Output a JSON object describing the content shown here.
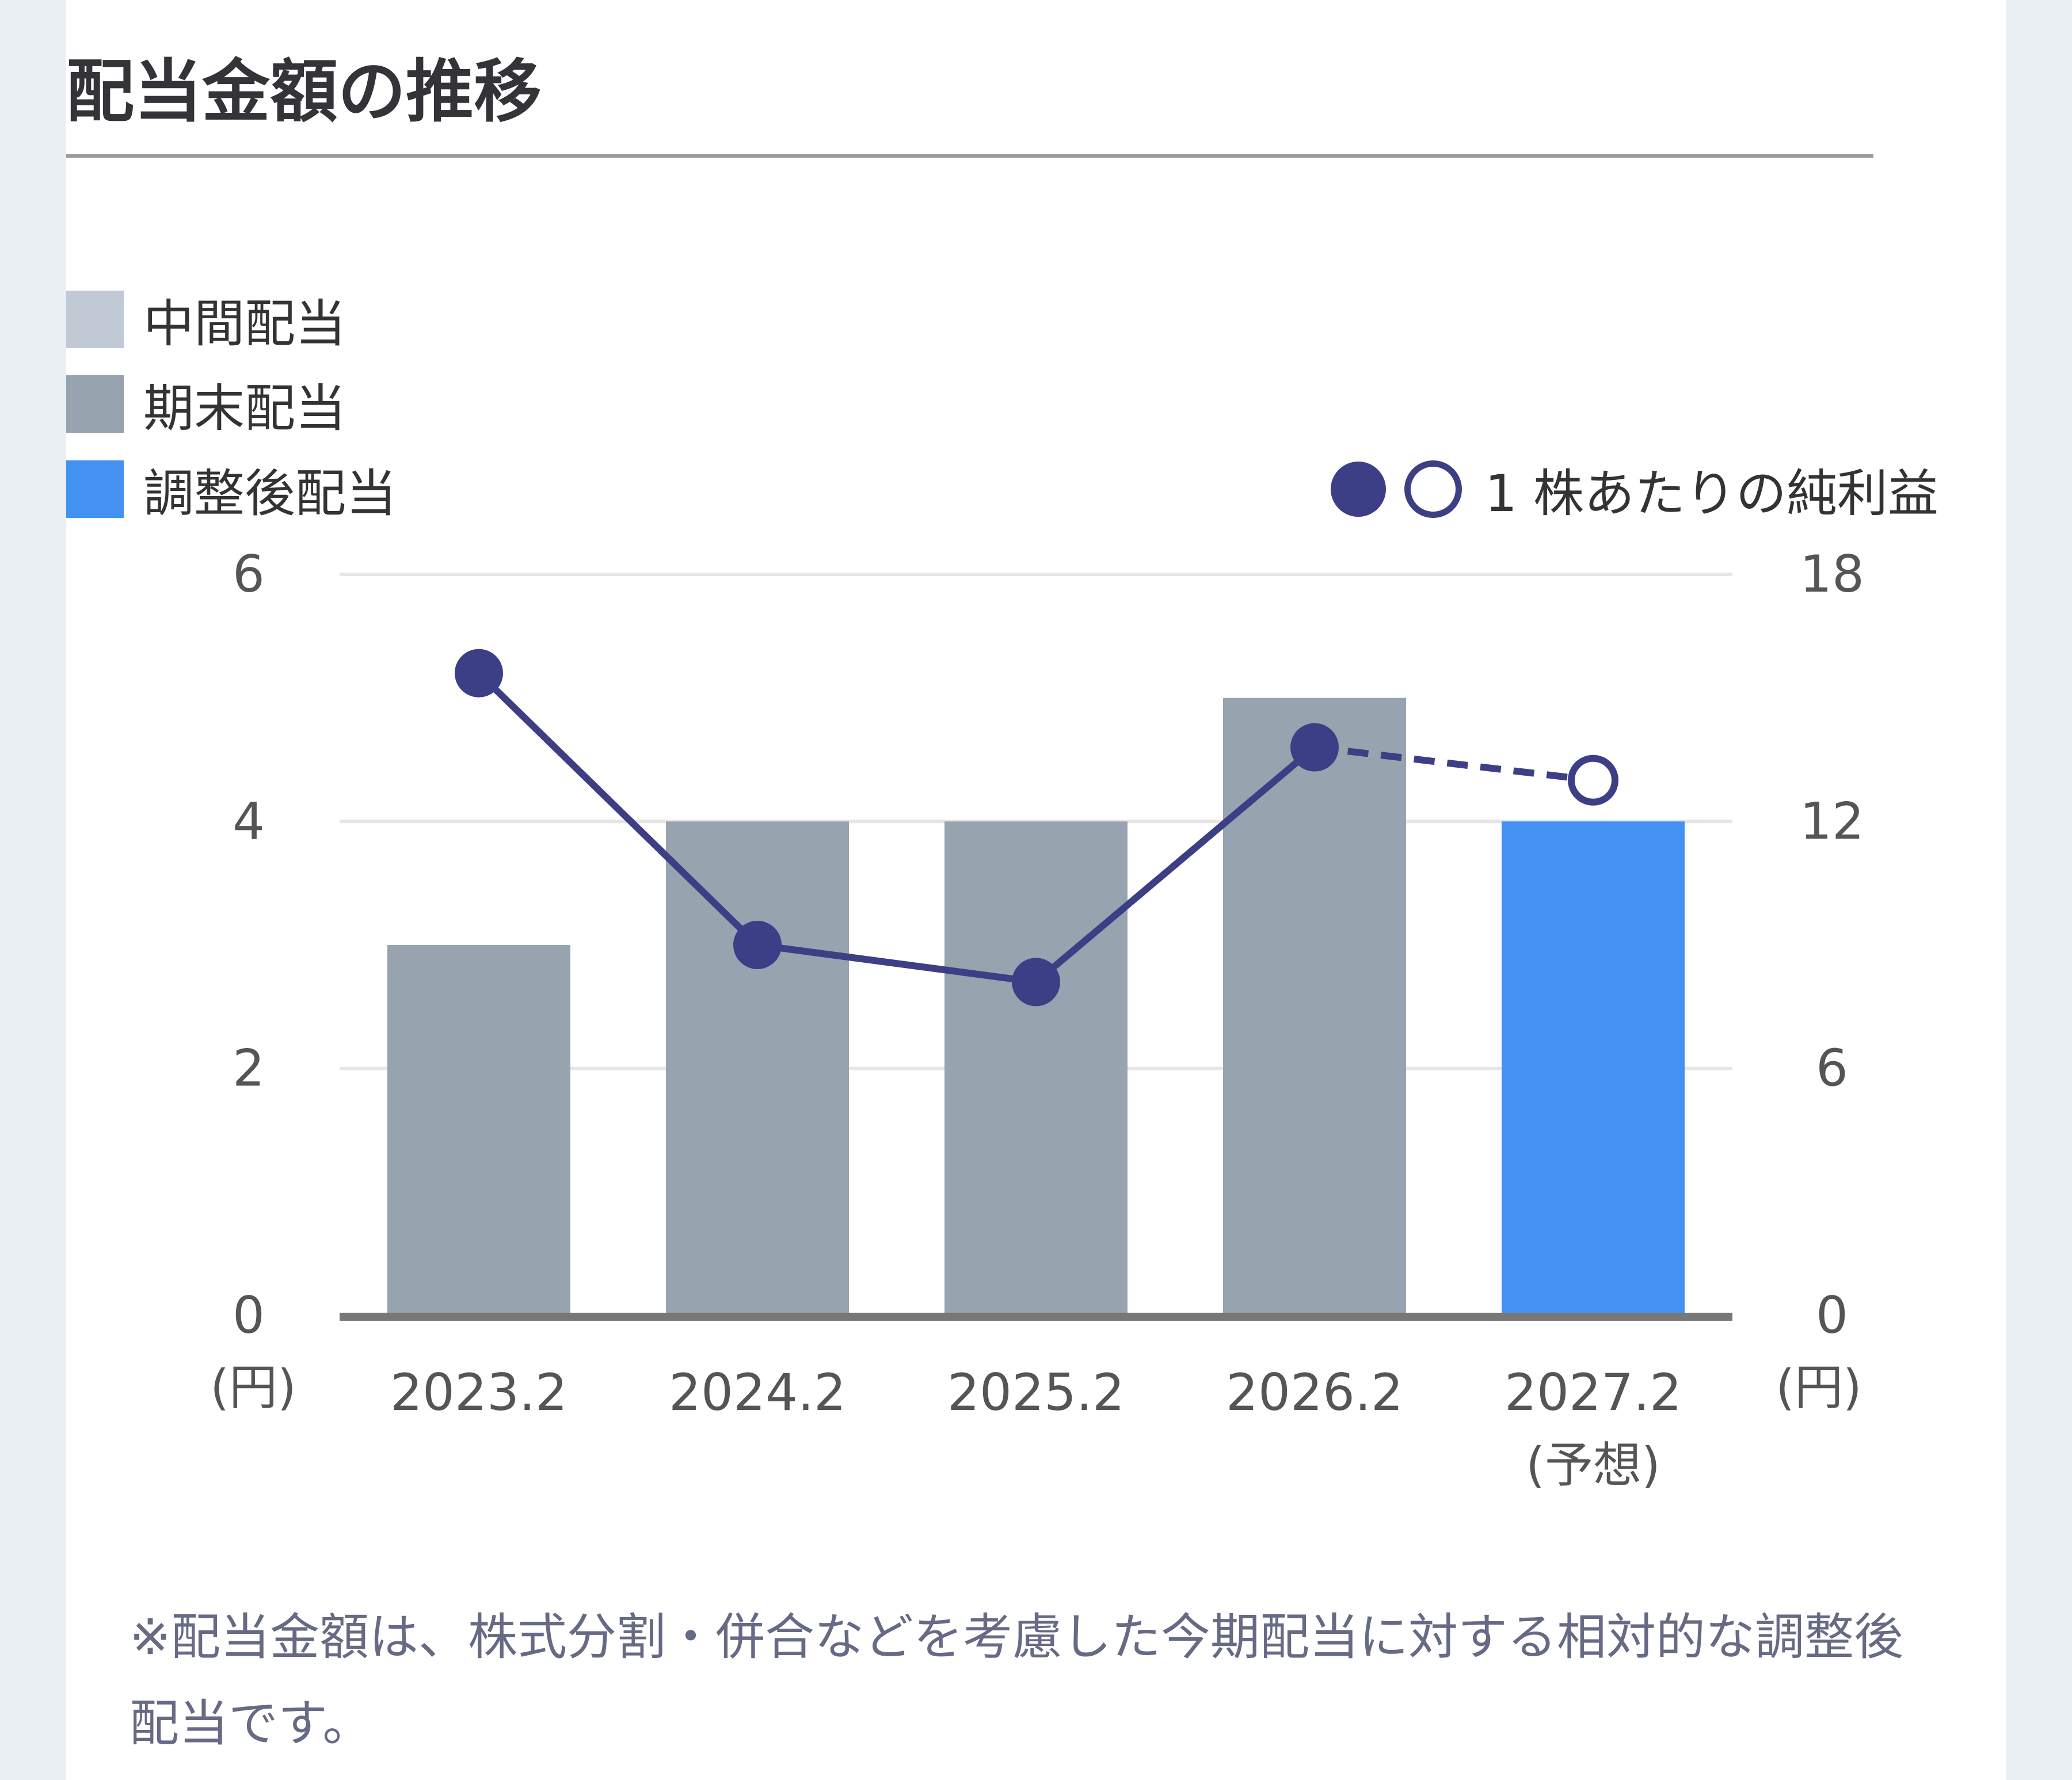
{
  "title": "配当金額の推移",
  "legend": {
    "interim": {
      "label": "中間配当",
      "color": "#c1cad4"
    },
    "year_end": {
      "label": "期末配当",
      "color": "#98a3b0"
    },
    "adjusted": {
      "label": "調整後配当",
      "color": "#4392f1"
    },
    "eps": {
      "label": "1 株あたりの純利益",
      "color": "#3c3f85"
    }
  },
  "chart_data": {
    "type": "bar",
    "categories": [
      "2023.2",
      "2024.2",
      "2025.2",
      "2026.2",
      "2027.2"
    ],
    "category_sublabels": [
      "",
      "",
      "",
      "",
      "(予想)"
    ],
    "series": [
      {
        "name": "期末配当",
        "axis": "left",
        "values": [
          3,
          4,
          4,
          5,
          null
        ]
      },
      {
        "name": "調整後配当",
        "axis": "left",
        "values": [
          null,
          null,
          null,
          null,
          4
        ]
      },
      {
        "name": "1 株あたりの純利益",
        "type": "line",
        "axis": "right",
        "values": [
          15.6,
          9.0,
          8.1,
          13.8,
          13.0
        ],
        "forecast_index": 4
      }
    ],
    "left_axis": {
      "ticks": [
        "0",
        "2",
        "4",
        "6"
      ],
      "range": [
        0,
        6
      ],
      "unit": "(円)"
    },
    "right_axis": {
      "ticks": [
        "0",
        "6",
        "12",
        "18"
      ],
      "range": [
        0,
        18
      ],
      "unit": "(円)"
    },
    "grid": true
  },
  "footnote": "※配当金額は、株式分割・併合などを考慮した今期配当に対する相対的な調整後配当です。"
}
